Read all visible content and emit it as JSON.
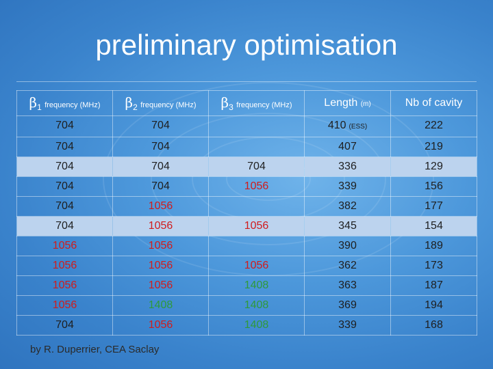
{
  "slide": {
    "title": "preliminary optimisation",
    "footer": "by R. Duperrier, CEA Saclay"
  },
  "columns": [
    {
      "greek": "β",
      "index": "1",
      "label": "frequency (MHz)"
    },
    {
      "greek": "β",
      "index": "2",
      "label": "frequency (MHz)"
    },
    {
      "greek": "β",
      "index": "3",
      "label": "frequency (MHz)"
    },
    {
      "main": "Length",
      "note": "(m)"
    },
    {
      "main": "Nb of cavity"
    }
  ],
  "rows": [
    {
      "b1": "704",
      "b2": "704",
      "b3": "",
      "length": "410",
      "length_note": "(ESS)",
      "nb": "222"
    },
    {
      "b1": "704",
      "b2": "704",
      "b3": "",
      "length": "407",
      "length_note": "",
      "nb": "219"
    },
    {
      "b1": "704",
      "b2": "704",
      "b3": "704",
      "length": "336",
      "length_note": "",
      "nb": "129"
    },
    {
      "b1": "704",
      "b2": "704",
      "b3": "1056",
      "length": "339",
      "length_note": "",
      "nb": "156"
    },
    {
      "b1": "704",
      "b2": "1056",
      "b3": "",
      "length": "382",
      "length_note": "",
      "nb": "177"
    },
    {
      "b1": "704",
      "b2": "1056",
      "b3": "1056",
      "length": "345",
      "length_note": "",
      "nb": "154"
    },
    {
      "b1": "1056",
      "b2": "1056",
      "b3": "",
      "length": "390",
      "length_note": "",
      "nb": "189"
    },
    {
      "b1": "1056",
      "b2": "1056",
      "b3": "1056",
      "length": "362",
      "length_note": "",
      "nb": "173"
    },
    {
      "b1": "1056",
      "b2": "1056",
      "b3": "1408",
      "length": "363",
      "length_note": "",
      "nb": "187"
    },
    {
      "b1": "1056",
      "b2": "1408",
      "b3": "1408",
      "length": "369",
      "length_note": "",
      "nb": "194"
    },
    {
      "b1": "704",
      "b2": "1056",
      "b3": "1408",
      "length": "339",
      "length_note": "",
      "nb": "168"
    }
  ],
  "colors": {
    "704": "#1e1e1e",
    "1056": "#d11b1b",
    "1408": "#2e9a3a",
    "row_highlight": "#bcd3ee"
  }
}
